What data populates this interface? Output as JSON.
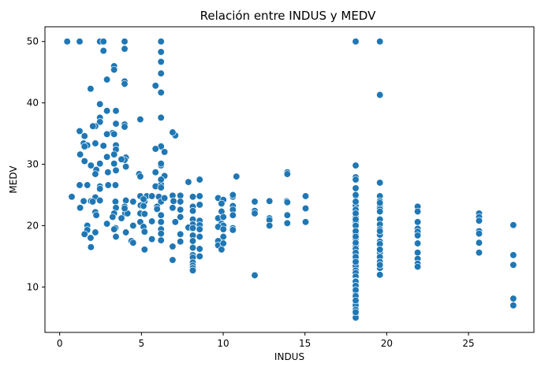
{
  "chart_data": {
    "type": "scatter",
    "title": "Relación entre INDUS y MEDV",
    "xlabel": "INDUS",
    "ylabel": "MEDV",
    "xlim": [
      -0.9,
      29.0
    ],
    "ylim": [
      2.6,
      52.4
    ],
    "xticks": [
      0,
      5,
      10,
      15,
      20,
      25
    ],
    "yticks": [
      10,
      20,
      30,
      40,
      50
    ],
    "grid": false,
    "marker_color": "#1f77b4",
    "marker_edge": "#ffffff",
    "points": [
      [
        0.46,
        50.0
      ],
      [
        1.22,
        50.0
      ],
      [
        2.46,
        50.0
      ],
      [
        2.68,
        50.0
      ],
      [
        3.97,
        50.0
      ],
      [
        6.2,
        50.0
      ],
      [
        18.1,
        50.0
      ],
      [
        19.58,
        50.0
      ],
      [
        2.68,
        48.5
      ],
      [
        3.97,
        48.8
      ],
      [
        6.2,
        48.3
      ],
      [
        6.2,
        46.7
      ],
      [
        3.33,
        46.0
      ],
      [
        3.33,
        45.4
      ],
      [
        6.2,
        44.8
      ],
      [
        2.89,
        43.8
      ],
      [
        3.97,
        43.5
      ],
      [
        3.97,
        43.1
      ],
      [
        5.86,
        42.8
      ],
      [
        1.89,
        42.3
      ],
      [
        6.2,
        41.7
      ],
      [
        19.58,
        41.3
      ],
      [
        2.46,
        39.8
      ],
      [
        3.44,
        38.7
      ],
      [
        2.89,
        38.7
      ],
      [
        2.46,
        37.6
      ],
      [
        4.93,
        37.3
      ],
      [
        6.2,
        37.6
      ],
      [
        2.46,
        36.9
      ],
      [
        3.44,
        36.6
      ],
      [
        3.97,
        36.5
      ],
      [
        3.97,
        36.1
      ],
      [
        2.18,
        36.2
      ],
      [
        2.03,
        36.2
      ],
      [
        1.22,
        35.4
      ],
      [
        3.24,
        35.1
      ],
      [
        3.33,
        34.9
      ],
      [
        7.07,
        34.7
      ],
      [
        6.91,
        35.2
      ],
      [
        2.89,
        34.9
      ],
      [
        1.52,
        34.6
      ],
      [
        1.47,
        33.4
      ],
      [
        2.18,
        33.4
      ],
      [
        3.44,
        33.1
      ],
      [
        1.69,
        33.1
      ],
      [
        1.52,
        32.9
      ],
      [
        6.2,
        33.0
      ],
      [
        6.2,
        32.9
      ],
      [
        5.86,
        32.5
      ],
      [
        2.68,
        33.0
      ],
      [
        3.44,
        32.4
      ],
      [
        3.33,
        31.6
      ],
      [
        6.41,
        32.0
      ],
      [
        1.25,
        31.6
      ],
      [
        2.89,
        31.2
      ],
      [
        4.05,
        31.1
      ],
      [
        3.97,
        30.7
      ],
      [
        3.78,
        30.8
      ],
      [
        1.52,
        30.5
      ],
      [
        2.46,
        30.1
      ],
      [
        3.33,
        30.1
      ],
      [
        1.91,
        29.8
      ],
      [
        4.05,
        29.6
      ],
      [
        6.2,
        29.8
      ],
      [
        2.24,
        29.1
      ],
      [
        3.44,
        29.0
      ],
      [
        5.86,
        28.7
      ],
      [
        2.95,
        28.7
      ],
      [
        2.18,
        28.4
      ],
      [
        4.86,
        28.4
      ],
      [
        4.93,
        28.0
      ],
      [
        6.41,
        28.1
      ],
      [
        13.92,
        28.7
      ],
      [
        10.81,
        28.0
      ],
      [
        13.92,
        28.4
      ],
      [
        8.56,
        27.5
      ],
      [
        18.1,
        27.9
      ],
      [
        18.1,
        27.5
      ],
      [
        19.58,
        27.0
      ],
      [
        7.87,
        27.1
      ],
      [
        2.97,
        26.6
      ],
      [
        6.2,
        26.7
      ],
      [
        1.69,
        26.6
      ],
      [
        5.86,
        26.4
      ],
      [
        2.46,
        26.4
      ],
      [
        1.22,
        26.6
      ],
      [
        3.41,
        26.6
      ],
      [
        6.2,
        26.2
      ],
      [
        0.74,
        24.7
      ],
      [
        2.18,
        24.6
      ],
      [
        4.93,
        24.8
      ],
      [
        5.32,
        24.8
      ],
      [
        5.64,
        24.8
      ],
      [
        6.07,
        24.7
      ],
      [
        6.91,
        24.9
      ],
      [
        7.38,
        24.9
      ],
      [
        8.14,
        24.7
      ],
      [
        8.56,
        24.8
      ],
      [
        9.69,
        24.5
      ],
      [
        10.01,
        24.2
      ],
      [
        10.59,
        24.7
      ],
      [
        10.59,
        25.0
      ],
      [
        11.93,
        23.9
      ],
      [
        13.89,
        24.0
      ],
      [
        15.04,
        24.8
      ],
      [
        18.1,
        24.8
      ],
      [
        19.58,
        24.8
      ],
      [
        21.89,
        23.1
      ],
      [
        25.65,
        22.0
      ],
      [
        1.91,
        24.0
      ],
      [
        2.46,
        24.1
      ],
      [
        3.41,
        23.9
      ],
      [
        4.05,
        24.1
      ],
      [
        4.49,
        23.9
      ],
      [
        5.19,
        23.9
      ],
      [
        6.2,
        23.9
      ],
      [
        6.96,
        24.0
      ],
      [
        7.38,
        23.9
      ],
      [
        8.14,
        23.1
      ],
      [
        8.56,
        23.4
      ],
      [
        9.9,
        23.6
      ],
      [
        10.59,
        23.2
      ],
      [
        12.83,
        24.0
      ],
      [
        13.92,
        23.8
      ],
      [
        15.04,
        22.8
      ],
      [
        18.1,
        23.3
      ],
      [
        19.58,
        23.1
      ],
      [
        1.47,
        24.0
      ],
      [
        2.02,
        23.9
      ],
      [
        3.44,
        22.9
      ],
      [
        3.97,
        23.1
      ],
      [
        4.95,
        23.3
      ],
      [
        5.13,
        23.2
      ],
      [
        5.96,
        23.1
      ],
      [
        6.91,
        22.9
      ],
      [
        7.38,
        22.6
      ],
      [
        8.14,
        22.4
      ],
      [
        9.9,
        22.3
      ],
      [
        10.59,
        22.6
      ],
      [
        11.93,
        22.4
      ],
      [
        12.83,
        21.2
      ],
      [
        13.92,
        21.7
      ],
      [
        18.1,
        22.6
      ],
      [
        19.58,
        22.7
      ],
      [
        21.89,
        22.3
      ],
      [
        25.65,
        21.4
      ],
      [
        1.25,
        22.9
      ],
      [
        2.18,
        22.2
      ],
      [
        3.33,
        22.0
      ],
      [
        4.0,
        22.0
      ],
      [
        4.93,
        22.0
      ],
      [
        5.19,
        21.9
      ],
      [
        6.2,
        21.7
      ],
      [
        7.38,
        21.4
      ],
      [
        8.14,
        21.0
      ],
      [
        8.56,
        20.8
      ],
      [
        9.69,
        21.2
      ],
      [
        10.01,
        21.4
      ],
      [
        10.59,
        21.7
      ],
      [
        11.93,
        22.0
      ],
      [
        12.83,
        20.9
      ],
      [
        13.92,
        20.4
      ],
      [
        15.04,
        20.6
      ],
      [
        18.1,
        21.4
      ],
      [
        19.58,
        21.0
      ],
      [
        21.89,
        20.6
      ],
      [
        25.65,
        20.8
      ],
      [
        2.24,
        21.7
      ],
      [
        3.24,
        21.4
      ],
      [
        3.78,
        21.2
      ],
      [
        4.93,
        20.6
      ],
      [
        5.64,
        20.7
      ],
      [
        6.2,
        20.6
      ],
      [
        7.07,
        20.6
      ],
      [
        8.14,
        20.2
      ],
      [
        8.56,
        20.1
      ],
      [
        9.9,
        20.3
      ],
      [
        10.01,
        20.0
      ],
      [
        10.59,
        19.6
      ],
      [
        12.83,
        20.0
      ],
      [
        18.1,
        20.6
      ],
      [
        19.58,
        20.2
      ],
      [
        21.89,
        19.5
      ],
      [
        27.74,
        20.1
      ],
      [
        1.69,
        20.0
      ],
      [
        2.89,
        20.3
      ],
      [
        3.41,
        19.6
      ],
      [
        4.49,
        20.0
      ],
      [
        5.13,
        19.8
      ],
      [
        6.2,
        19.4
      ],
      [
        7.87,
        19.7
      ],
      [
        8.14,
        19.6
      ],
      [
        8.56,
        19.4
      ],
      [
        9.69,
        19.8
      ],
      [
        10.01,
        19.4
      ],
      [
        10.59,
        19.3
      ],
      [
        18.1,
        19.8
      ],
      [
        19.58,
        19.4
      ],
      [
        21.89,
        19.0
      ],
      [
        25.65,
        19.1
      ],
      [
        1.69,
        19.3
      ],
      [
        2.18,
        18.9
      ],
      [
        3.33,
        19.4
      ],
      [
        4.05,
        18.9
      ],
      [
        5.19,
        19.0
      ],
      [
        6.2,
        18.7
      ],
      [
        7.38,
        18.6
      ],
      [
        8.14,
        18.4
      ],
      [
        8.56,
        18.2
      ],
      [
        9.69,
        17.5
      ],
      [
        10.01,
        18.2
      ],
      [
        18.1,
        18.7
      ],
      [
        19.58,
        18.5
      ],
      [
        21.89,
        18.4
      ],
      [
        25.65,
        18.7
      ],
      [
        1.52,
        18.6
      ],
      [
        1.89,
        18.0
      ],
      [
        3.44,
        18.2
      ],
      [
        4.39,
        17.5
      ],
      [
        5.64,
        17.8
      ],
      [
        6.2,
        17.6
      ],
      [
        7.38,
        17.4
      ],
      [
        8.14,
        17.5
      ],
      [
        9.69,
        16.8
      ],
      [
        10.01,
        17.1
      ],
      [
        18.1,
        17.8
      ],
      [
        19.58,
        17.4
      ],
      [
        21.89,
        17.1
      ],
      [
        25.65,
        17.2
      ],
      [
        1.91,
        16.5
      ],
      [
        4.49,
        17.2
      ],
      [
        5.19,
        16.1
      ],
      [
        6.91,
        16.6
      ],
      [
        8.14,
        16.4
      ],
      [
        8.56,
        16.2
      ],
      [
        9.9,
        16.1
      ],
      [
        18.1,
        16.7
      ],
      [
        19.58,
        15.6
      ],
      [
        21.89,
        15.6
      ],
      [
        25.65,
        15.6
      ],
      [
        27.74,
        15.2
      ],
      [
        8.14,
        15.2
      ],
      [
        8.56,
        15.0
      ],
      [
        8.14,
        14.8
      ],
      [
        18.1,
        15.2
      ],
      [
        19.58,
        14.9
      ],
      [
        21.89,
        14.6
      ],
      [
        6.91,
        14.4
      ],
      [
        8.14,
        14.0
      ],
      [
        8.14,
        13.5
      ],
      [
        8.14,
        13.1
      ],
      [
        8.14,
        12.7
      ],
      [
        18.1,
        14.4
      ],
      [
        19.58,
        14.1
      ],
      [
        21.89,
        13.8
      ],
      [
        21.89,
        13.3
      ],
      [
        27.74,
        13.6
      ],
      [
        18.1,
        13.8
      ],
      [
        18.1,
        13.4
      ],
      [
        19.58,
        13.1
      ],
      [
        18.1,
        12.7
      ],
      [
        18.1,
        12.3
      ],
      [
        19.58,
        12.0
      ],
      [
        11.93,
        11.9
      ],
      [
        18.1,
        11.7
      ],
      [
        18.1,
        11.0
      ],
      [
        18.1,
        10.4
      ],
      [
        18.1,
        9.7
      ],
      [
        18.1,
        8.8
      ],
      [
        18.1,
        8.3
      ],
      [
        18.1,
        7.4
      ],
      [
        18.1,
        7.0
      ],
      [
        18.1,
        6.3
      ],
      [
        18.1,
        5.6
      ],
      [
        18.1,
        5.0
      ],
      [
        27.74,
        8.1
      ],
      [
        27.74,
        7.0
      ],
      [
        18.1,
        25.0
      ],
      [
        18.1,
        26.1
      ],
      [
        18.1,
        23.9
      ],
      [
        18.1,
        22.0
      ],
      [
        18.1,
        21.0
      ],
      [
        18.1,
        20.0
      ],
      [
        18.1,
        19.1
      ],
      [
        18.1,
        18.2
      ],
      [
        18.1,
        17.2
      ],
      [
        18.1,
        16.2
      ],
      [
        18.1,
        15.6
      ],
      [
        18.1,
        14.9
      ],
      [
        18.1,
        14.1
      ],
      [
        18.1,
        10.9
      ],
      [
        18.1,
        10.2
      ],
      [
        18.1,
        9.5
      ],
      [
        18.1,
        8.5
      ],
      [
        18.1,
        7.8
      ],
      [
        18.1,
        5.9
      ],
      [
        19.58,
        24.0
      ],
      [
        19.58,
        23.7
      ],
      [
        19.58,
        19.1
      ],
      [
        19.58,
        17.0
      ],
      [
        19.58,
        16.1
      ],
      [
        19.58,
        13.6
      ],
      [
        19.58,
        22.3
      ],
      [
        18.1,
        29.8
      ],
      [
        5.13,
        24.3
      ],
      [
        5.96,
        22.7
      ],
      [
        6.41,
        24.5
      ],
      [
        4.15,
        22.0
      ],
      [
        3.97,
        22.8
      ],
      [
        2.46,
        26.0
      ],
      [
        6.2,
        27.5
      ],
      [
        6.2,
        30.1
      ]
    ]
  }
}
